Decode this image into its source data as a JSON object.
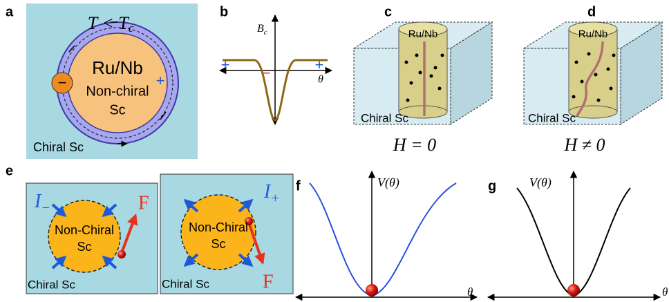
{
  "panels": {
    "a": {
      "label": "a",
      "temperature": {
        "main": "T < T",
        "sub": "c"
      },
      "inner_title": "Ru/Nb",
      "inner_line1": "Non-chiral",
      "inner_line2": "Sc",
      "charge_left": "−",
      "charge_right": "+",
      "outer": "Chiral Sc"
    },
    "b": {
      "label": "b",
      "y_axis": {
        "main": "B",
        "sub": "c"
      },
      "x_axis": "θ",
      "sign_left": "+",
      "sign_center": "−",
      "sign_right": "+"
    },
    "c": {
      "label": "c",
      "cylinder": "Ru/Nb",
      "bulk": "Chiral Sc",
      "field": "H = 0"
    },
    "d": {
      "label": "d",
      "cylinder": "Ru/Nb",
      "bulk": "Chiral Sc",
      "field": "H ≠ 0"
    },
    "e": {
      "label": "e",
      "left": {
        "current": {
          "main": "I",
          "sub": "−"
        },
        "force": "F",
        "inner_line1": "Non-Chiral",
        "inner_line2": "Sc",
        "outer": "Chiral Sc"
      },
      "right": {
        "current": {
          "main": "I",
          "sub": "+"
        },
        "force": "F",
        "inner_line1": "Non-Chiral",
        "inner_line2": "Sc",
        "outer": "Chiral Sc"
      }
    },
    "f": {
      "label": "f",
      "y_axis": "V(θ)",
      "x_axis": "θ"
    },
    "g": {
      "label": "g",
      "y_axis": "V(θ)",
      "x_axis": "θ"
    }
  }
}
